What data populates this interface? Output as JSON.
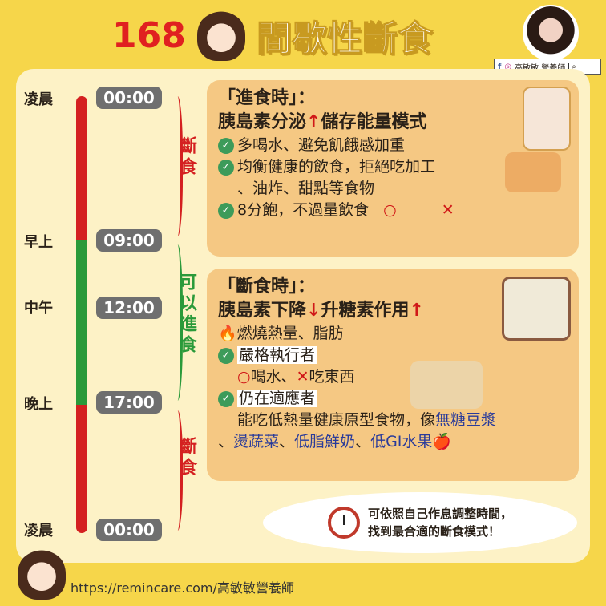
{
  "title": {
    "number": "168",
    "text": "間歇性斷食"
  },
  "social": {
    "facebook_icon": "f",
    "instagram_icon": "◎",
    "name": "高敏敏 營養師",
    "search_icon": "search-icon"
  },
  "timeline": {
    "periods": [
      "凌晨",
      "早上",
      "中午",
      "晚上",
      "凌晨"
    ],
    "times": [
      "00:00",
      "09:00",
      "12:00",
      "17:00",
      "00:00"
    ],
    "phases": [
      {
        "label": "斷食",
        "color": "#d42020"
      },
      {
        "label": "可以進食",
        "color": "#2a9a3a"
      },
      {
        "label": "斷食",
        "color": "#d42020"
      }
    ]
  },
  "eating": {
    "title": "「進食時」：",
    "subtitle_a": "胰島素分泌",
    "subtitle_b": "儲存能量模式",
    "arrow": "↑",
    "items": [
      "多喝水、避免飢餓感加重",
      "均衡健康的飲食，拒絕吃加工",
      "、油炸、甜點等食物",
      "8分飽，不過量飲食"
    ],
    "ok": "○",
    "no": "✕"
  },
  "fasting": {
    "title": "「斷食時」：",
    "subtitle_a": "胰島素下降",
    "arrow_down": "↓",
    "subtitle_b": "升糖素作用",
    "arrow_up": "↑",
    "burn": "燃燒熱量、脂肪",
    "fire": "🔥",
    "strict_label": "嚴格執行者",
    "strict_ok": "○",
    "strict_a": "喝水、",
    "strict_no": "✕",
    "strict_b": "吃東西",
    "adapt_label": "仍在適應者",
    "adapt_text": "能吃低熱量健康原型食物，像",
    "adapt_h1": "無糖豆漿",
    "sep": "、",
    "adapt_h2": "燙蔬菜",
    "adapt_h3": "低脂鮮奶",
    "adapt_h4": "低GI水果",
    "apple": "🍎"
  },
  "tip": {
    "line1": "可依照自己作息調整時間，",
    "line2": "找到最合適的斷食模式！"
  },
  "footer": {
    "url": "https://remincare.com/高敏敏營養師"
  }
}
